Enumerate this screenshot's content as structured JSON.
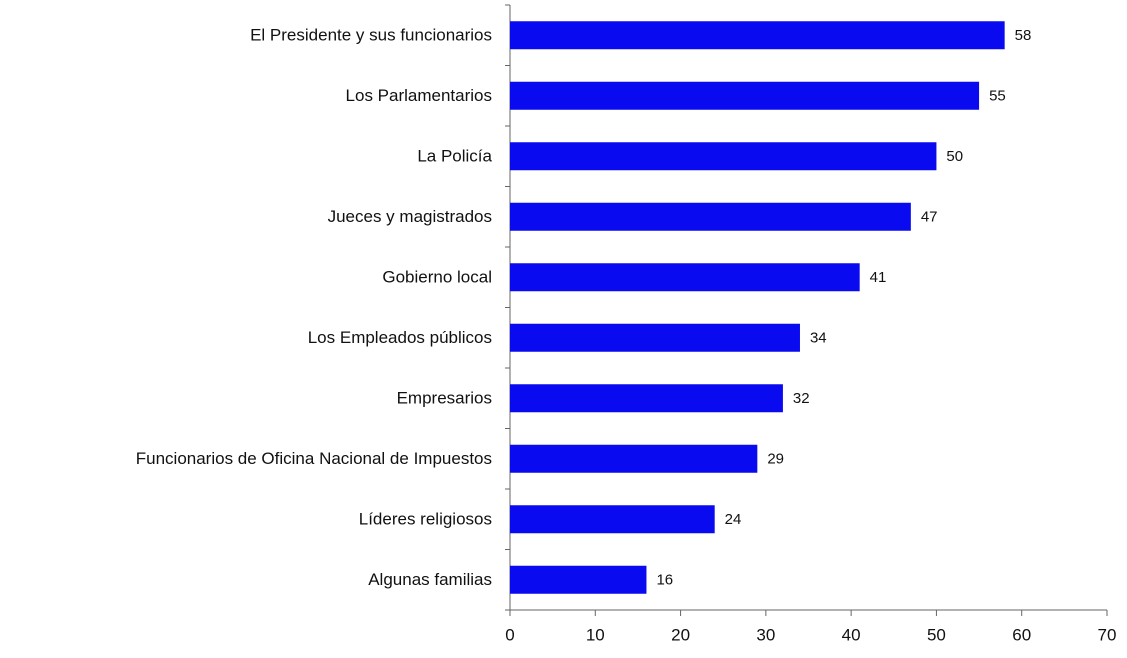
{
  "chart_data": {
    "type": "bar",
    "orientation": "horizontal",
    "categories": [
      "El Presidente y sus funcionarios",
      "Los Parlamentarios",
      "La Policía",
      "Jueces y magistrados",
      "Gobierno local",
      "Los Empleados públicos",
      "Empresarios",
      "Funcionarios de Oficina Nacional de Impuestos",
      "Líderes religiosos",
      "Algunas familias"
    ],
    "values": [
      58,
      55,
      50,
      47,
      41,
      34,
      32,
      29,
      24,
      16
    ],
    "color": "#0a0af0",
    "xlim": [
      0,
      70
    ],
    "xticks": [
      0,
      10,
      20,
      30,
      40,
      50,
      60,
      70
    ],
    "grid": false
  }
}
